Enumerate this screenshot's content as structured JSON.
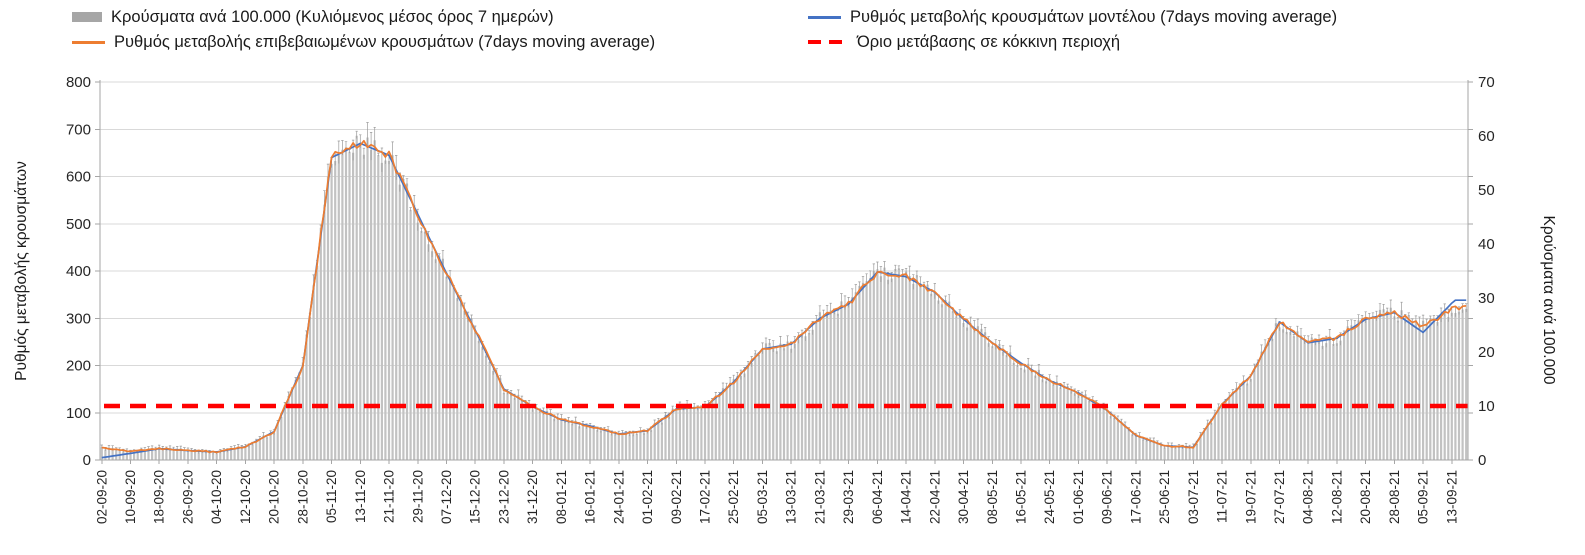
{
  "legend": {
    "items": [
      {
        "label": "Κρούσματα ανά 100.000 (Κυλιόμενος μέσος όρος 7 ημερών)",
        "swatch": "bar",
        "color": "#a6a6a6"
      },
      {
        "label": "Ρυθμός μεταβολής κρουσμάτων μοντέλου (7days moving average)",
        "swatch": "line",
        "color": "#4472c4"
      },
      {
        "label": "Ρυθμός μεταβολής επιβεβαιωμένων κρουσμάτων (7days moving average)",
        "swatch": "line",
        "color": "#ed7d31"
      },
      {
        "label": "Όριο μετάβασης σε κόκκινη περιοχή",
        "swatch": "dashed-line",
        "color": "#ff0000"
      }
    ]
  },
  "chart_data": {
    "type": "combo",
    "title": "",
    "grid": true,
    "legend_position": "top",
    "x_note": "categories are 8 days apart; daily bars/lines are interpolated between these anchor values",
    "categories": [
      "02-09-20",
      "10-09-20",
      "18-09-20",
      "26-09-20",
      "04-10-20",
      "12-10-20",
      "20-10-20",
      "28-10-20",
      "05-11-20",
      "13-11-20",
      "21-11-20",
      "29-11-20",
      "07-12-20",
      "15-12-20",
      "23-12-20",
      "31-12-20",
      "08-01-21",
      "16-01-21",
      "24-01-21",
      "01-02-21",
      "09-02-21",
      "17-02-21",
      "25-02-21",
      "05-03-21",
      "13-03-21",
      "21-03-21",
      "29-03-21",
      "06-04-21",
      "14-04-21",
      "22-04-21",
      "30-04-21",
      "08-05-21",
      "16-05-21",
      "24-05-21",
      "01-06-21",
      "09-06-21",
      "17-06-21",
      "25-06-21",
      "03-07-21",
      "11-07-21",
      "19-07-21",
      "27-07-21",
      "04-08-21",
      "12-08-21",
      "20-08-21",
      "28-08-21",
      "05-09-21",
      "13-09-21"
    ],
    "left_axis": {
      "title": "Ρυθμός μεταβολής κρουσμάτων",
      "min": 0,
      "max": 800,
      "step": 100
    },
    "right_axis": {
      "title": "Κρούσματα ανά 100.000",
      "min": 0,
      "max": 70,
      "step": 10
    },
    "series": [
      {
        "name": "Κρούσματα ανά 100.000 (Κυλιόμενος μέσος όρος 7 ημερών)",
        "type": "bar",
        "axis": "right",
        "color": "#c2c2c2",
        "values": [
          2.2,
          1.6,
          2.1,
          1.8,
          1.5,
          2.5,
          5.3,
          17.5,
          56,
          58.6,
          56.4,
          45.5,
          34.6,
          24.1,
          13.1,
          9.9,
          7.4,
          6.3,
          4.8,
          5.4,
          9.5,
          9.8,
          14.4,
          20.6,
          21.4,
          26.3,
          28.9,
          34.8,
          34,
          31.1,
          26.1,
          21.7,
          17.9,
          14.7,
          12.4,
          9.2,
          4.6,
          2.6,
          2.4,
          10.3,
          15.6,
          25.6,
          21.7,
          22.6,
          26.1,
          27.3,
          24.7,
          27.8
        ]
      },
      {
        "name": "Ρυθμός μεταβολής κρουσμάτων μοντέλου (7days moving average)",
        "type": "line",
        "axis": "left",
        "color": "#4472c4",
        "values": [
          5,
          14,
          24,
          20,
          17,
          28,
          60,
          200,
          640,
          670,
          645,
          520,
          395,
          275,
          150,
          113,
          85,
          72,
          55,
          62,
          108,
          112,
          165,
          235,
          245,
          300,
          330,
          398,
          388,
          355,
          298,
          248,
          205,
          168,
          142,
          105,
          52,
          30,
          27,
          118,
          178,
          292,
          248,
          258,
          298,
          312,
          270,
          332
        ]
      },
      {
        "name": "Ρυθμός μεταβολής επιβεβαιωμένων κρουσμάτων (7days moving average)",
        "type": "line",
        "axis": "left",
        "color": "#ed7d31",
        "values": [
          25,
          18,
          24,
          20,
          17,
          28,
          60,
          200,
          640,
          670,
          645,
          520,
          395,
          275,
          150,
          113,
          85,
          72,
          55,
          62,
          108,
          112,
          165,
          235,
          245,
          300,
          330,
          398,
          388,
          355,
          298,
          248,
          205,
          168,
          142,
          105,
          52,
          30,
          27,
          118,
          178,
          292,
          248,
          258,
          298,
          312,
          282,
          318
        ]
      },
      {
        "name": "Όριο μετάβασης σε κόκκινη περιοχή",
        "type": "threshold",
        "axis": "right",
        "color": "#ff0000",
        "value": 10
      }
    ]
  }
}
